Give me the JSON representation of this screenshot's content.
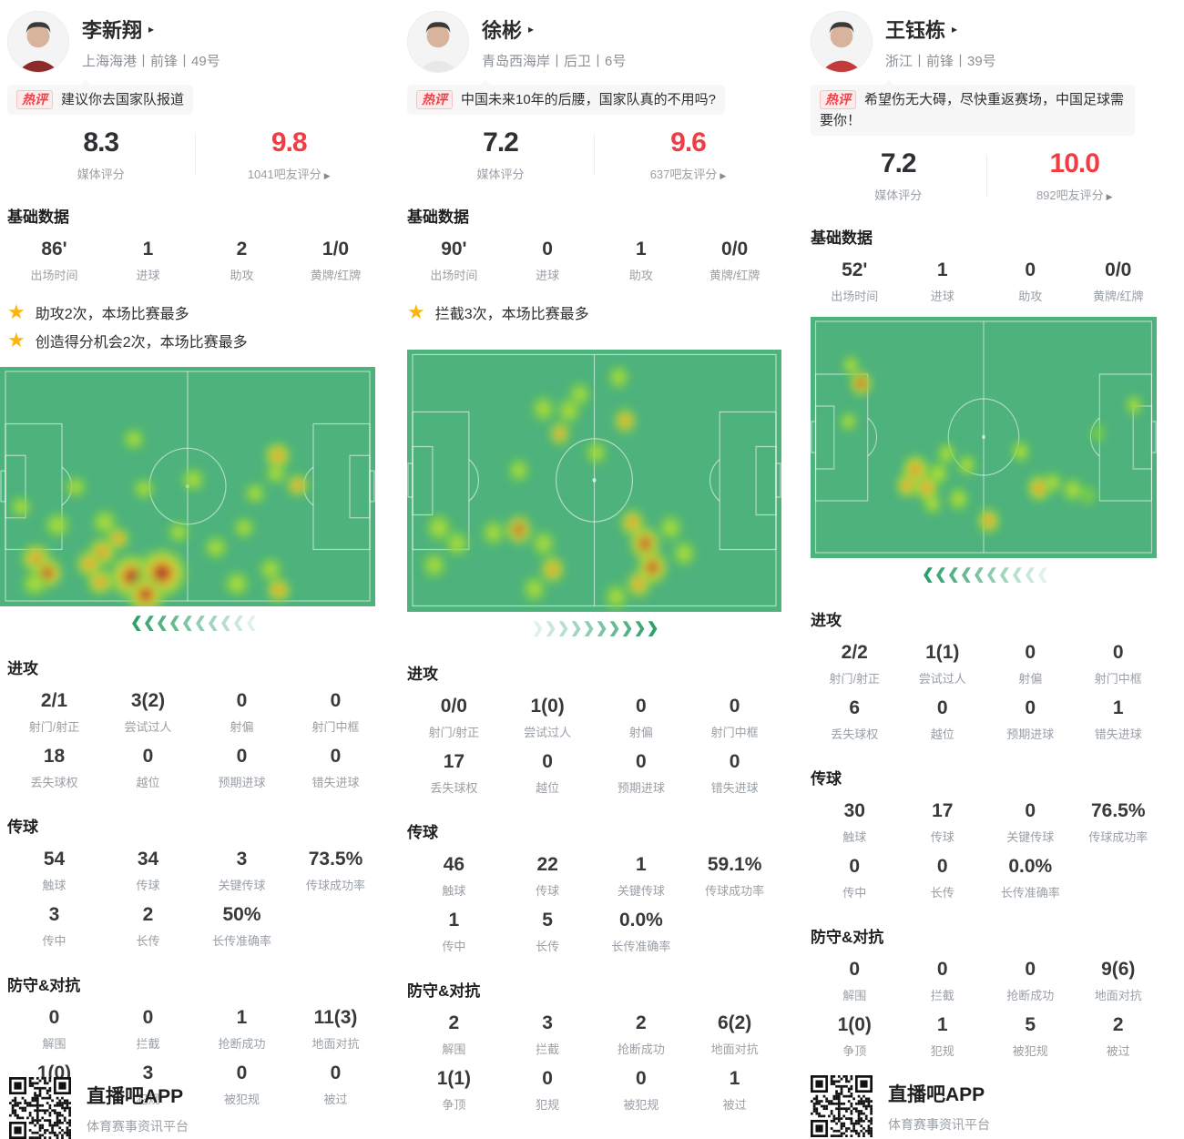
{
  "colors": {
    "accent_red": "#f23c43",
    "pitch_green": "#4db27c",
    "line_white": "#ffffff",
    "chevron_green": "#2ea06a",
    "star_gold": "#fbb50c",
    "tag_red": "#f0404a"
  },
  "footer": {
    "app_name": "直播吧APP",
    "app_tagline": "体育赛事资讯平台",
    "qr_icon": "qr-code"
  },
  "players": [
    {
      "name": "李新翔",
      "caret": "▸",
      "team": "上海海港丨前锋丨49号",
      "hot_tag": "热评",
      "hot_comment": "建议你去国家队报道",
      "media_score": "8.3",
      "media_score_label": "媒体评分",
      "fan_score": "9.8",
      "fan_score_label": "1041吧友评分",
      "fan_caret": "▶",
      "basic_title": "基础数据",
      "basic": [
        {
          "v": "86'",
          "l": "出场时间"
        },
        {
          "v": "1",
          "l": "进球"
        },
        {
          "v": "2",
          "l": "助攻"
        },
        {
          "v": "1/0",
          "l": "黄牌/红牌"
        }
      ],
      "highlights": [
        "助攻2次，本场比赛最多",
        "创造得分机会2次，本场比赛最多"
      ],
      "heat_direction": "left",
      "heat_blobs": [
        [
          147,
          80,
          11,
          2
        ],
        [
          83,
          133,
          11,
          2
        ],
        [
          23,
          155,
          11,
          2
        ],
        [
          63,
          175,
          13,
          2
        ],
        [
          158,
          135,
          11,
          2
        ],
        [
          212,
          125,
          12,
          2
        ],
        [
          305,
          98,
          14,
          3
        ],
        [
          303,
          118,
          11,
          2
        ],
        [
          280,
          140,
          11,
          2
        ],
        [
          327,
          131,
          12,
          3
        ],
        [
          196,
          183,
          11,
          2
        ],
        [
          237,
          200,
          12,
          2
        ],
        [
          268,
          178,
          11,
          2
        ],
        [
          40,
          212,
          16,
          3
        ],
        [
          52,
          228,
          15,
          4
        ],
        [
          38,
          240,
          13,
          2
        ],
        [
          115,
          172,
          13,
          2
        ],
        [
          112,
          205,
          15,
          3
        ],
        [
          110,
          238,
          14,
          3
        ],
        [
          130,
          190,
          12,
          3
        ],
        [
          98,
          218,
          14,
          3
        ],
        [
          145,
          232,
          22,
          4
        ],
        [
          178,
          228,
          24,
          4
        ],
        [
          160,
          252,
          18,
          4
        ],
        [
          260,
          240,
          13,
          2
        ],
        [
          297,
          224,
          12,
          2
        ],
        [
          306,
          247,
          13,
          3
        ]
      ],
      "sections": [
        {
          "title": "进攻",
          "rows": [
            [
              {
                "v": "2/1",
                "l": "射门/射正"
              },
              {
                "v": "3(2)",
                "l": "尝试过人"
              },
              {
                "v": "0",
                "l": "射偏"
              },
              {
                "v": "0",
                "l": "射门中框"
              }
            ],
            [
              {
                "v": "18",
                "l": "丢失球权"
              },
              {
                "v": "0",
                "l": "越位"
              },
              {
                "v": "0",
                "l": "预期进球"
              },
              {
                "v": "0",
                "l": "错失进球"
              }
            ]
          ]
        },
        {
          "title": "传球",
          "rows": [
            [
              {
                "v": "54",
                "l": "触球"
              },
              {
                "v": "34",
                "l": "传球"
              },
              {
                "v": "3",
                "l": "关键传球"
              },
              {
                "v": "73.5%",
                "l": "传球成功率"
              }
            ],
            [
              {
                "v": "3",
                "l": "传中"
              },
              {
                "v": "2",
                "l": "长传"
              },
              {
                "v": "50%",
                "l": "长传准确率"
              }
            ]
          ]
        },
        {
          "title": "防守&对抗",
          "rows": [
            [
              {
                "v": "0",
                "l": "解围"
              },
              {
                "v": "0",
                "l": "拦截"
              },
              {
                "v": "1",
                "l": "抢断成功"
              },
              {
                "v": "11(3)",
                "l": "地面对抗"
              }
            ],
            [
              {
                "v": "1(0)",
                "l": "争顶"
              },
              {
                "v": "3",
                "l": "犯规"
              },
              {
                "v": "0",
                "l": "被犯规"
              },
              {
                "v": "0",
                "l": "被过"
              }
            ]
          ]
        }
      ],
      "avatar_shirt": "#8e2a2a"
    },
    {
      "name": "徐彬",
      "caret": "▸",
      "team": "青岛西海岸丨后卫丨6号",
      "hot_tag": "热评",
      "hot_comment": "中国未来10年的后腰，国家队真的不用吗?",
      "media_score": "7.2",
      "media_score_label": "媒体评分",
      "fan_score": "9.6",
      "fan_score_label": "637吧友评分",
      "fan_caret": "▶",
      "basic_title": "基础数据",
      "basic": [
        {
          "v": "90'",
          "l": "出场时间"
        },
        {
          "v": "0",
          "l": "进球"
        },
        {
          "v": "1",
          "l": "助攻"
        },
        {
          "v": "0/0",
          "l": "黄牌/红牌"
        }
      ],
      "highlights": [
        "拦截3次，本场比赛最多"
      ],
      "heat_direction": "right",
      "heat_blobs": [
        [
          150,
          60,
          12,
          2
        ],
        [
          178,
          62,
          12,
          2
        ],
        [
          168,
          85,
          11,
          3
        ],
        [
          190,
          45,
          11,
          2
        ],
        [
          233,
          28,
          11,
          2
        ],
        [
          240,
          72,
          12,
          3
        ],
        [
          208,
          104,
          11,
          2
        ],
        [
          123,
          122,
          11,
          2
        ],
        [
          35,
          180,
          13,
          2
        ],
        [
          55,
          196,
          12,
          2
        ],
        [
          30,
          218,
          12,
          2
        ],
        [
          95,
          185,
          12,
          2
        ],
        [
          123,
          182,
          13,
          4
        ],
        [
          150,
          196,
          12,
          2
        ],
        [
          160,
          222,
          13,
          3
        ],
        [
          140,
          242,
          12,
          2
        ],
        [
          248,
          175,
          13,
          3
        ],
        [
          262,
          196,
          15,
          4
        ],
        [
          270,
          220,
          15,
          4
        ],
        [
          255,
          237,
          13,
          3
        ],
        [
          290,
          180,
          12,
          2
        ],
        [
          305,
          206,
          12,
          2
        ],
        [
          230,
          250,
          12,
          2
        ]
      ],
      "sections": [
        {
          "title": "进攻",
          "rows": [
            [
              {
                "v": "0/0",
                "l": "射门/射正"
              },
              {
                "v": "1(0)",
                "l": "尝试过人"
              },
              {
                "v": "0",
                "l": "射偏"
              },
              {
                "v": "0",
                "l": "射门中框"
              }
            ],
            [
              {
                "v": "17",
                "l": "丢失球权"
              },
              {
                "v": "0",
                "l": "越位"
              },
              {
                "v": "0",
                "l": "预期进球"
              },
              {
                "v": "0",
                "l": "错失进球"
              }
            ]
          ]
        },
        {
          "title": "传球",
          "rows": [
            [
              {
                "v": "46",
                "l": "触球"
              },
              {
                "v": "22",
                "l": "传球"
              },
              {
                "v": "1",
                "l": "关键传球"
              },
              {
                "v": "59.1%",
                "l": "传球成功率"
              }
            ],
            [
              {
                "v": "1",
                "l": "传中"
              },
              {
                "v": "5",
                "l": "长传"
              },
              {
                "v": "0.0%",
                "l": "长传准确率"
              }
            ]
          ]
        },
        {
          "title": "防守&对抗",
          "rows": [
            [
              {
                "v": "2",
                "l": "解围"
              },
              {
                "v": "3",
                "l": "拦截"
              },
              {
                "v": "2",
                "l": "抢断成功"
              },
              {
                "v": "6(2)",
                "l": "地面对抗"
              }
            ],
            [
              {
                "v": "1(1)",
                "l": "争顶"
              },
              {
                "v": "0",
                "l": "犯规"
              },
              {
                "v": "0",
                "l": "被犯规"
              },
              {
                "v": "1",
                "l": "被过"
              }
            ]
          ]
        }
      ],
      "avatar_shirt": "#e8e8e8"
    },
    {
      "name": "王钰栋",
      "caret": "▸",
      "team": "浙江丨前锋丨39号",
      "hot_tag": "热评",
      "hot_comment": "希望伤无大碍，尽快重返赛场，中国足球需要你！",
      "media_score": "7.2",
      "media_score_label": "媒体评分",
      "fan_score": "10.0",
      "fan_score_label": "892吧友评分",
      "fan_caret": "▶",
      "basic_title": "基础数据",
      "basic": [
        {
          "v": "52'",
          "l": "出场时间"
        },
        {
          "v": "1",
          "l": "进球"
        },
        {
          "v": "0",
          "l": "助攻"
        },
        {
          "v": "0/0",
          "l": "黄牌/红牌"
        }
      ],
      "highlights": [],
      "heat_direction": "left",
      "heat_blobs": [
        [
          60,
          73,
          12,
          4
        ],
        [
          48,
          53,
          10,
          2
        ],
        [
          45,
          115,
          10,
          2
        ],
        [
          125,
          168,
          16,
          3
        ],
        [
          138,
          188,
          14,
          3
        ],
        [
          115,
          185,
          13,
          3
        ],
        [
          152,
          172,
          12,
          2
        ],
        [
          162,
          150,
          11,
          2
        ],
        [
          186,
          163,
          11,
          2
        ],
        [
          176,
          200,
          12,
          2
        ],
        [
          145,
          205,
          11,
          2
        ],
        [
          212,
          224,
          13,
          3
        ],
        [
          250,
          148,
          11,
          2
        ],
        [
          272,
          188,
          14,
          3
        ],
        [
          288,
          182,
          11,
          2
        ],
        [
          312,
          190,
          12,
          2
        ],
        [
          330,
          196,
          10,
          1
        ],
        [
          342,
          128,
          9,
          1
        ],
        [
          385,
          97,
          10,
          2
        ]
      ],
      "sections": [
        {
          "title": "进攻",
          "rows": [
            [
              {
                "v": "2/2",
                "l": "射门/射正"
              },
              {
                "v": "1(1)",
                "l": "尝试过人"
              },
              {
                "v": "0",
                "l": "射偏"
              },
              {
                "v": "0",
                "l": "射门中框"
              }
            ],
            [
              {
                "v": "6",
                "l": "丢失球权"
              },
              {
                "v": "0",
                "l": "越位"
              },
              {
                "v": "0",
                "l": "预期进球"
              },
              {
                "v": "1",
                "l": "错失进球"
              }
            ]
          ]
        },
        {
          "title": "传球",
          "rows": [
            [
              {
                "v": "30",
                "l": "触球"
              },
              {
                "v": "17",
                "l": "传球"
              },
              {
                "v": "0",
                "l": "关键传球"
              },
              {
                "v": "76.5%",
                "l": "传球成功率"
              }
            ],
            [
              {
                "v": "0",
                "l": "传中"
              },
              {
                "v": "0",
                "l": "长传"
              },
              {
                "v": "0.0%",
                "l": "长传准确率"
              }
            ]
          ]
        },
        {
          "title": "防守&对抗",
          "rows": [
            [
              {
                "v": "0",
                "l": "解围"
              },
              {
                "v": "0",
                "l": "拦截"
              },
              {
                "v": "0",
                "l": "抢断成功"
              },
              {
                "v": "9(6)",
                "l": "地面对抗"
              }
            ],
            [
              {
                "v": "1(0)",
                "l": "争顶"
              },
              {
                "v": "1",
                "l": "犯规"
              },
              {
                "v": "5",
                "l": "被犯规"
              },
              {
                "v": "2",
                "l": "被过"
              }
            ]
          ]
        }
      ],
      "avatar_shirt": "#c43b3b"
    }
  ]
}
